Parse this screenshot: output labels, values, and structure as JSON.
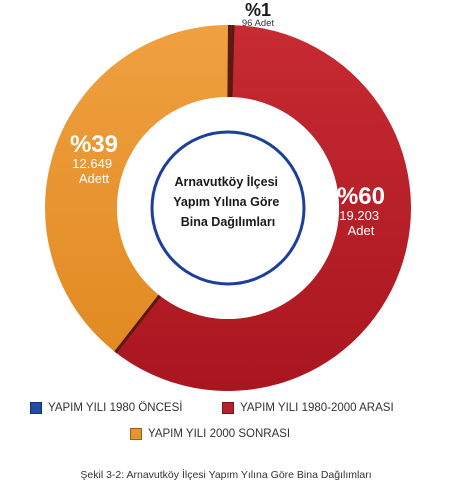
{
  "chart_data": {
    "type": "pie",
    "style": "donut",
    "center_title_lines": [
      "Arnavutköy İlçesi",
      "Yapım Yılına Göre",
      "Bina Dağılımları"
    ],
    "slices": [
      {
        "name": "YAPIM YILI 1980 ÖNCESİ",
        "percent_label": "%1",
        "count_label": "96 Adet",
        "value": 96,
        "color": "#1f4ea3"
      },
      {
        "name": "YAPIM YILI 1980-2000 ARASI",
        "percent_label": "%60",
        "count_label_lines": [
          "19.203",
          "Adet"
        ],
        "value": 19203,
        "color": "#b71f2a"
      },
      {
        "name": "YAPIM YILI 2000 SONRASI",
        "percent_label": "%39",
        "count_label_lines": [
          "12.649",
          "Adett"
        ],
        "value": 12649,
        "color": "#e7942d"
      }
    ],
    "legend_position": "bottom"
  },
  "caption": "Şekil 3-2: Arnavutköy İlçesi Yapım Yılına Göre Bina Dağılımları"
}
